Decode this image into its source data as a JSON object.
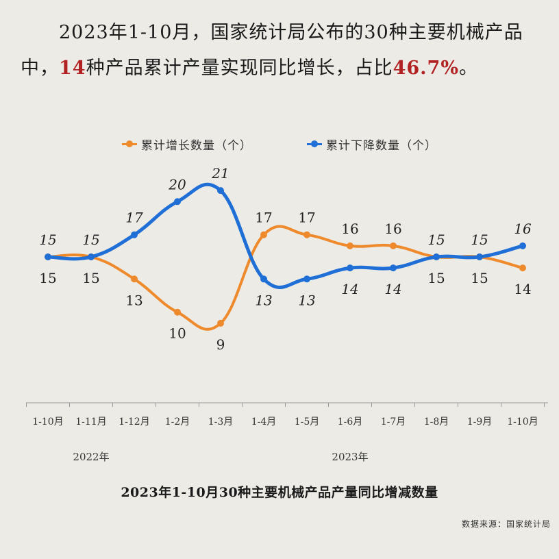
{
  "headline": {
    "text_before": "2023年1-10月，国家统计局公布的30种主要机械产品中，",
    "highlight_count": "14",
    "text_middle": "种产品累计产量实现同比增长，占比",
    "highlight_share": "46.7%",
    "text_after": "。"
  },
  "chart_data": {
    "type": "line",
    "title": "2023年1-10月30种主要机械产品产量同比增减数量",
    "categories": [
      "1-10月",
      "1-11月",
      "1-12月",
      "1-2月",
      "1-3月",
      "1-4月",
      "1-5月",
      "1-6月",
      "1-7月",
      "1-8月",
      "1-9月",
      "1-10月"
    ],
    "year_groups": [
      {
        "label": "2022年",
        "start_index": 0,
        "end_index": 2
      },
      {
        "label": "2023年",
        "start_index": 3,
        "end_index": 11
      }
    ],
    "series": [
      {
        "name": "累计增长数量（个）",
        "color": "#ee8a2c",
        "label_position": "top-first-then-alternate",
        "values": [
          15,
          15,
          13,
          10,
          9,
          17,
          17,
          16,
          16,
          15,
          15,
          14
        ]
      },
      {
        "name": "累计下降数量（个）",
        "color": "#1f6fd6",
        "values": [
          15,
          15,
          17,
          20,
          21,
          13,
          13,
          14,
          14,
          15,
          15,
          16
        ]
      }
    ],
    "ylim": [
      8,
      22
    ],
    "grid": false,
    "legend_position": "top-center"
  },
  "source": "数据来源：国家统计局"
}
